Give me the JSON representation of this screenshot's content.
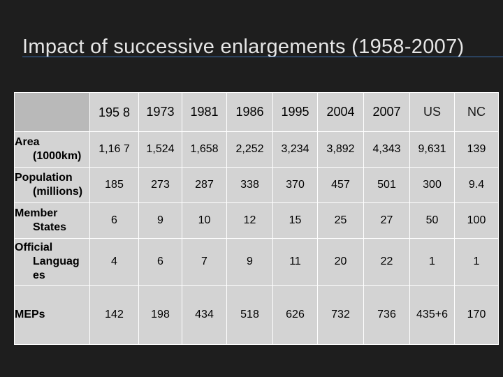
{
  "slide": {
    "title": "Impact of successive enlargements (1958-2007)"
  },
  "table": {
    "headers": [
      "195 8",
      "1973",
      "1981",
      "1986",
      "1995",
      "2004",
      "2007",
      "US",
      "NC"
    ],
    "rows": [
      {
        "label_top": "Area",
        "label_rest": "(1000km)",
        "values": [
          "1,16 7",
          "1,524",
          "1,658",
          "2,252",
          "3,234",
          "3,892",
          "4,343",
          "9,631",
          "139"
        ]
      },
      {
        "label_top": "Population",
        "label_rest": "(millions)",
        "values": [
          "185",
          "273",
          "287",
          "338",
          "370",
          "457",
          "501",
          "300",
          "9.4"
        ]
      },
      {
        "label_top": "Member",
        "label_rest": "States",
        "values": [
          "6",
          "9",
          "10",
          "12",
          "15",
          "25",
          "27",
          "50",
          "100"
        ]
      },
      {
        "label_top": "Official",
        "label_rest": "Languag es",
        "values": [
          "4",
          "6",
          "7",
          "9",
          "11",
          "20",
          "22",
          "1",
          "1"
        ]
      },
      {
        "label_top": "MEPs",
        "label_rest": "",
        "values": [
          "142",
          "198",
          "434",
          "518",
          "626",
          "732",
          "736",
          "435+6",
          "170"
        ]
      }
    ]
  }
}
